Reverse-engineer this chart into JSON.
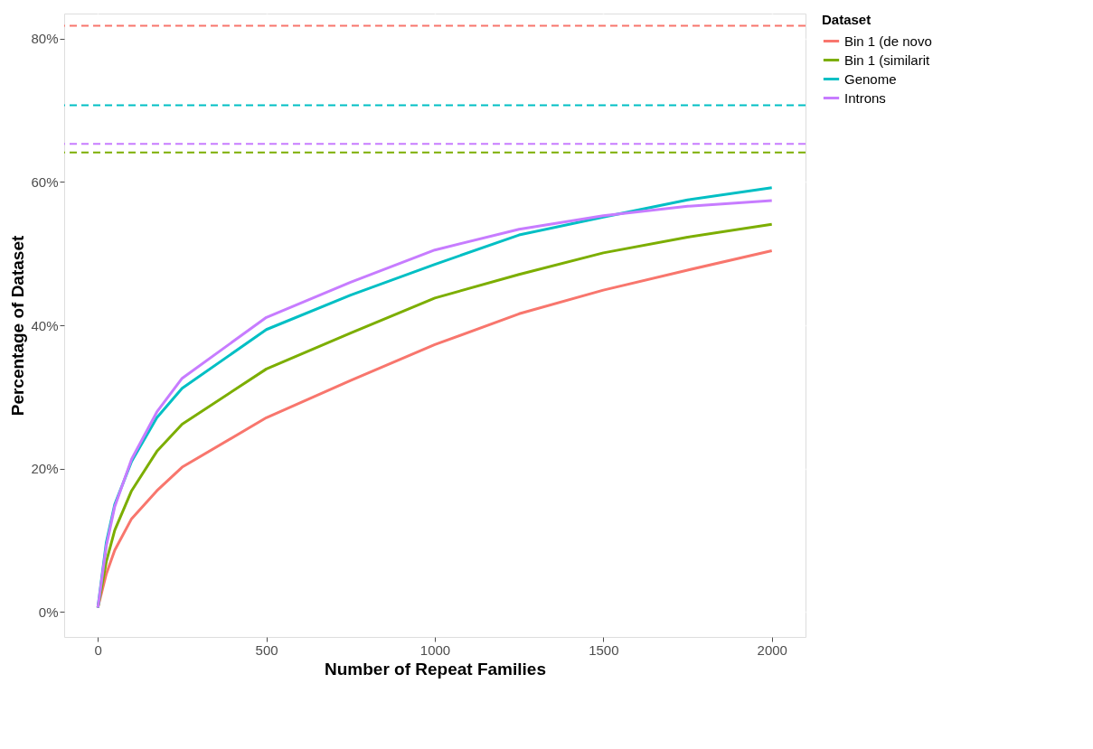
{
  "chart_data": {
    "type": "line",
    "xlabel": "Number of Repeat Families",
    "ylabel": "Percentage of Dataset",
    "legend_title": "Dataset",
    "legend": "right",
    "grid": true,
    "line_style": "solid",
    "marker": "none",
    "xlim": [
      -100,
      2100
    ],
    "xticks": [
      0,
      500,
      1000,
      1500,
      2000
    ],
    "ylim": [
      -3.5,
      83.5
    ],
    "yticks": [
      {
        "value": 0,
        "label": "0%"
      },
      {
        "value": 20,
        "label": "20%"
      },
      {
        "value": 40,
        "label": "40%"
      },
      {
        "value": 60,
        "label": "60%"
      },
      {
        "value": 80,
        "label": "80%"
      }
    ],
    "x": [
      0,
      25,
      50,
      100,
      175,
      250,
      500,
      750,
      1000,
      1250,
      1500,
      1750,
      2000
    ],
    "series": [
      {
        "name": "Bin 1 (de novo",
        "color": "#f8766d",
        "values": [
          0.6,
          5.3,
          8.6,
          13.0,
          16.9,
          20.2,
          27.1,
          32.3,
          37.3,
          41.6,
          44.9,
          47.7,
          50.4
        ]
      },
      {
        "name": "Bin 1 (similarit",
        "color": "#7cae00",
        "values": [
          0.6,
          7.0,
          11.4,
          16.9,
          22.4,
          26.2,
          33.9,
          38.9,
          43.8,
          47.1,
          50.1,
          52.3,
          54.1
        ]
      },
      {
        "name": "Genome",
        "color": "#00bfc4",
        "values": [
          0.6,
          9.7,
          15.0,
          21.0,
          27.1,
          31.2,
          39.4,
          44.2,
          48.5,
          52.6,
          55.1,
          57.5,
          59.2
        ]
      },
      {
        "name": "Introns",
        "color": "#c77cff",
        "values": [
          0.6,
          9.2,
          14.7,
          21.3,
          27.9,
          32.6,
          41.1,
          46.0,
          50.5,
          53.4,
          55.3,
          56.6,
          57.4
        ]
      }
    ],
    "ref_lines": [
      {
        "axis": "y",
        "value": 81.8,
        "color": "#f8766d",
        "line_style": "dashed"
      },
      {
        "axis": "y",
        "value": 70.7,
        "color": "#00bfc4",
        "line_style": "dashed"
      },
      {
        "axis": "y",
        "value": 65.3,
        "color": "#c77cff",
        "line_style": "dashed"
      },
      {
        "axis": "y",
        "value": 64.1,
        "color": "#7cae00",
        "line_style": "dashed"
      }
    ]
  }
}
